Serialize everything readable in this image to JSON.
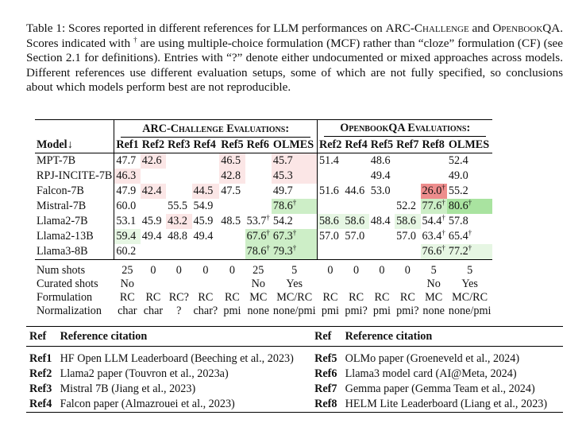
{
  "caption": {
    "p1": "Table 1: Scores reported in different references for LLM performances on ",
    "arc": "ARC-Challenge",
    "p2": " and ",
    "obqa": "OpenbookQA",
    "p3": ". Scores indicated with ",
    "dagger": "†",
    "p4": " are using multiple-choice formulation (MCF) rather than “cloze” formulation (CF) (see Section 2.1 for definitions). Entries with “?” denote either undocumented or mixed approaches across models. Different references use different evaluation setups, some of which are not fully specified, so conclusions about which models perform best are not reproducible."
  },
  "group_titles": {
    "arc": "ARC-Challenge Evaluations:",
    "obqa": "OpenbookQA Evaluations:"
  },
  "headers": {
    "model": "Model↓",
    "arc": [
      "Ref1",
      "Ref2",
      "Ref3",
      "Ref4",
      "Ref5",
      "Ref6",
      "OLMES"
    ],
    "obqa": [
      "Ref2",
      "Ref4",
      "Ref5",
      "Ref7",
      "Ref8",
      "OLMES"
    ]
  },
  "colors": {
    "pink_light": "#fbe6e6",
    "pink_mid": "#f6c9c9",
    "red_strong": "#ee8d8d",
    "green_light": "#e6f6e3",
    "green_mid": "#cdeec7",
    "green_strong": "#a9e3a0"
  },
  "rows": [
    {
      "model": "MPT-7B",
      "arc": [
        {
          "v": "47.7"
        },
        {
          "v": "42.6",
          "bg": "pink_light"
        },
        {
          "v": ""
        },
        {
          "v": ""
        },
        {
          "v": "46.5",
          "bg": "pink_light"
        },
        {
          "v": ""
        },
        {
          "v": "45.7",
          "bg": "pink_light"
        }
      ],
      "obqa": [
        {
          "v": "51.4"
        },
        {
          "v": ""
        },
        {
          "v": "48.6"
        },
        {
          "v": ""
        },
        {
          "v": ""
        },
        {
          "v": "52.4"
        }
      ]
    },
    {
      "model": "RPJ-INCITE-7B",
      "arc": [
        {
          "v": "46.3",
          "bg": "pink_light"
        },
        {
          "v": ""
        },
        {
          "v": ""
        },
        {
          "v": ""
        },
        {
          "v": "42.8",
          "bg": "pink_light"
        },
        {
          "v": ""
        },
        {
          "v": "45.3",
          "bg": "pink_light"
        }
      ],
      "obqa": [
        {
          "v": ""
        },
        {
          "v": ""
        },
        {
          "v": "49.4"
        },
        {
          "v": ""
        },
        {
          "v": ""
        },
        {
          "v": "49.0"
        }
      ]
    },
    {
      "model": "Falcon-7B",
      "arc": [
        {
          "v": "47.9"
        },
        {
          "v": "42.4",
          "bg": "pink_light"
        },
        {
          "v": ""
        },
        {
          "v": "44.5",
          "bg": "pink_light"
        },
        {
          "v": "47.5"
        },
        {
          "v": ""
        },
        {
          "v": "49.7"
        }
      ],
      "obqa": [
        {
          "v": "51.6"
        },
        {
          "v": "44.6"
        },
        {
          "v": "53.0"
        },
        {
          "v": ""
        },
        {
          "v": "26.0",
          "dag": true,
          "bg": "red_strong"
        },
        {
          "v": "55.2"
        }
      ]
    },
    {
      "model": "Mistral-7B",
      "arc": [
        {
          "v": "60.0"
        },
        {
          "v": ""
        },
        {
          "v": "55.5"
        },
        {
          "v": "54.9"
        },
        {
          "v": ""
        },
        {
          "v": ""
        },
        {
          "v": "78.6",
          "dag": true,
          "bg": "green_mid"
        }
      ],
      "obqa": [
        {
          "v": ""
        },
        {
          "v": ""
        },
        {
          "v": ""
        },
        {
          "v": "52.2"
        },
        {
          "v": "77.6",
          "dag": true,
          "bg": "green_mid"
        },
        {
          "v": "80.6",
          "dag": true,
          "bg": "green_strong"
        }
      ]
    },
    {
      "model": "Llama2-7B",
      "arc": [
        {
          "v": "53.1"
        },
        {
          "v": "45.9"
        },
        {
          "v": "43.2",
          "bg": "pink_light"
        },
        {
          "v": "45.9"
        },
        {
          "v": "48.5"
        },
        {
          "v": "53.7",
          "dag": true
        },
        {
          "v": "54.2"
        }
      ],
      "obqa": [
        {
          "v": "58.6",
          "bg": "green_light"
        },
        {
          "v": "58.6",
          "bg": "green_light"
        },
        {
          "v": "48.4"
        },
        {
          "v": "58.6",
          "bg": "green_light"
        },
        {
          "v": "54.4",
          "dag": true
        },
        {
          "v": "57.8"
        }
      ]
    },
    {
      "model": "Llama2-13B",
      "arc": [
        {
          "v": "59.4",
          "bg": "green_light"
        },
        {
          "v": "49.4"
        },
        {
          "v": "48.8"
        },
        {
          "v": "49.4"
        },
        {
          "v": ""
        },
        {
          "v": "67.6",
          "dag": true,
          "bg": "green_mid"
        },
        {
          "v": "67.3",
          "dag": true,
          "bg": "green_mid"
        }
      ],
      "obqa": [
        {
          "v": "57.0"
        },
        {
          "v": "57.0"
        },
        {
          "v": ""
        },
        {
          "v": "57.0"
        },
        {
          "v": "63.4",
          "dag": true
        },
        {
          "v": "65.4",
          "dag": true
        }
      ]
    },
    {
      "model": "Llama3-8B",
      "arc": [
        {
          "v": "60.2"
        },
        {
          "v": ""
        },
        {
          "v": ""
        },
        {
          "v": ""
        },
        {
          "v": ""
        },
        {
          "v": "78.6",
          "dag": true,
          "bg": "green_mid"
        },
        {
          "v": "79.3",
          "dag": true,
          "bg": "green_mid"
        }
      ],
      "obqa": [
        {
          "v": ""
        },
        {
          "v": ""
        },
        {
          "v": ""
        },
        {
          "v": ""
        },
        {
          "v": "76.6",
          "dag": true,
          "bg": "green_light"
        },
        {
          "v": "77.2",
          "dag": true,
          "bg": "green_light"
        }
      ]
    }
  ],
  "meta": [
    {
      "label": "Num shots",
      "arc": [
        "25",
        "0",
        "0",
        "0",
        "0",
        "25",
        "5"
      ],
      "obqa": [
        "0",
        "0",
        "0",
        "0",
        "5",
        "5"
      ]
    },
    {
      "label": "Curated shots",
      "arc": [
        "No",
        "",
        "",
        "",
        "",
        "No",
        "Yes"
      ],
      "obqa": [
        "",
        "",
        "",
        "",
        "No",
        "Yes"
      ]
    },
    {
      "label": "Formulation",
      "arc": [
        "RC",
        "RC",
        "RC?",
        "RC",
        "RC",
        "MC",
        "MC/RC"
      ],
      "obqa": [
        "RC",
        "RC",
        "RC",
        "RC",
        "MC",
        "MC/RC"
      ]
    },
    {
      "label": "Normalization",
      "arc": [
        "char",
        "char",
        "?",
        "char?",
        "pmi",
        "none",
        "none/pmi"
      ],
      "obqa": [
        "pmi",
        "pmi?",
        "pmi",
        "pmi?",
        "none",
        "none/pmi"
      ]
    }
  ],
  "refs_header": {
    "ref": "Ref",
    "citation": "Reference citation"
  },
  "refs_left": [
    {
      "id": "Ref1",
      "text": "HF Open LLM Leaderboard (Beeching et al., 2023)"
    },
    {
      "id": "Ref2",
      "text": "Llama2 paper (Touvron et al., 2023a)"
    },
    {
      "id": "Ref3",
      "text": "Mistral 7B (Jiang et al., 2023)"
    },
    {
      "id": "Ref4",
      "text": "Falcon paper (Almazrouei et al., 2023)"
    }
  ],
  "refs_right": [
    {
      "id": "Ref5",
      "text": "OLMo paper (Groeneveld et al., 2024)"
    },
    {
      "id": "Ref6",
      "text": "Llama3 model card (AI@Meta, 2024)"
    },
    {
      "id": "Ref7",
      "text": "Gemma paper (Gemma Team et al., 2024)"
    },
    {
      "id": "Ref8",
      "text": "HELM Lite Leaderboard (Liang et al., 2023)"
    }
  ]
}
